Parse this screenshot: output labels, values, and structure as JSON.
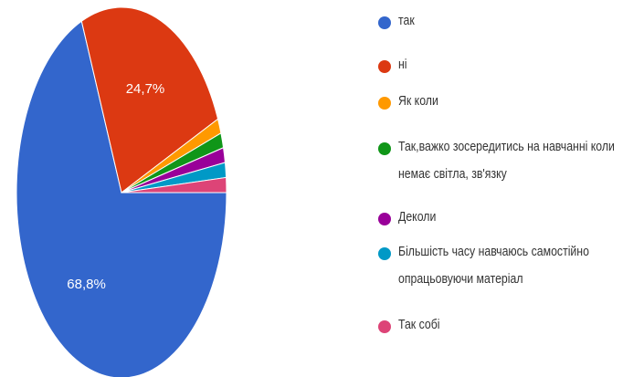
{
  "chart_data": {
    "type": "pie",
    "categories": [
      "так",
      "ні",
      "Як коли",
      "Так,важко зосередитись на навчанні коли немає світла, зв'язку",
      "Деколи",
      "Більшість часу навчаюсь самостійно опрацьовуючи матеріал",
      "Так собі"
    ],
    "values": [
      68.8,
      24.7,
      1.3,
      1.3,
      1.3,
      1.3,
      1.3
    ],
    "value_labels": [
      "68,8%",
      "24,7%",
      null,
      null,
      null,
      null,
      null
    ],
    "colors": [
      "#3366cc",
      "#dc3912",
      "#ff9900",
      "#109618",
      "#990099",
      "#0099c6",
      "#dd4477"
    ]
  }
}
